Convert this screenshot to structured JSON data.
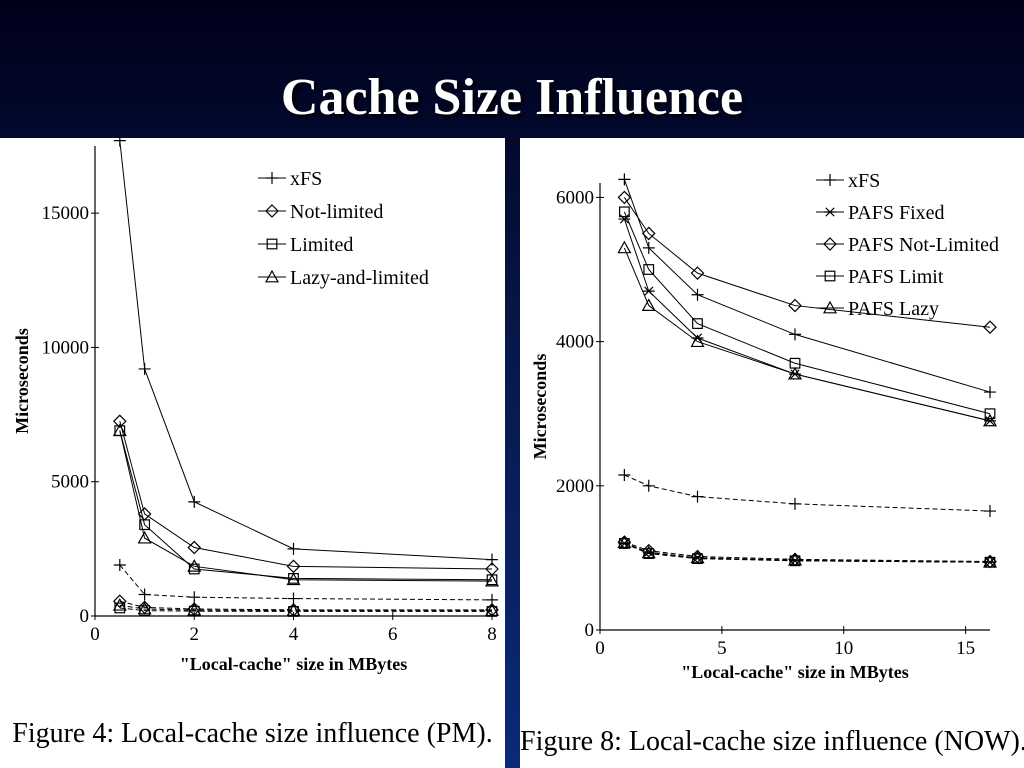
{
  "slide": {
    "title": "Cache Size Influence",
    "colors": {
      "background_top": "#00001a",
      "background_bottom": "#0b2a78",
      "title": "#ffffff",
      "panel": "#ffffff"
    }
  },
  "chart_data": [
    {
      "type": "line",
      "caption": "Figure 4: Local-cache size influence (PM).",
      "xlabel": "\"Local-cache\" size in MBytes",
      "ylabel": "Microseconds",
      "xlim": [
        0,
        8
      ],
      "ylim": [
        0,
        17500
      ],
      "xticks": [
        0,
        2,
        4,
        6,
        8
      ],
      "yticks": [
        0,
        5000,
        10000,
        15000
      ],
      "grid": false,
      "legend_position": "top-right",
      "series": [
        {
          "name": "xFS",
          "marker": "plus",
          "dash": false,
          "legend": true,
          "x": [
            0.5,
            1,
            2,
            4,
            8
          ],
          "y": [
            17700,
            9200,
            4250,
            2500,
            2100
          ]
        },
        {
          "name": "Not-limited",
          "marker": "diamond",
          "dash": false,
          "legend": true,
          "x": [
            0.5,
            1,
            2,
            4,
            8
          ],
          "y": [
            7250,
            3800,
            2550,
            1850,
            1750
          ]
        },
        {
          "name": "Limited",
          "marker": "square",
          "dash": false,
          "legend": true,
          "x": [
            0.5,
            1,
            2,
            4,
            8
          ],
          "y": [
            6900,
            3400,
            1750,
            1400,
            1350
          ]
        },
        {
          "name": "Lazy-and-limited",
          "marker": "triangle",
          "dash": false,
          "legend": true,
          "x": [
            0.5,
            1,
            2,
            4,
            8
          ],
          "y": [
            6900,
            2900,
            1850,
            1350,
            1300
          ]
        },
        {
          "marker": "plus",
          "dash": true,
          "legend": false,
          "x": [
            0.5,
            1,
            2,
            4,
            8
          ],
          "y": [
            1900,
            800,
            700,
            650,
            600
          ]
        },
        {
          "marker": "diamond",
          "dash": true,
          "legend": false,
          "x": [
            0.5,
            1,
            2,
            4,
            8
          ],
          "y": [
            550,
            320,
            260,
            230,
            230
          ]
        },
        {
          "marker": "square",
          "dash": true,
          "legend": false,
          "x": [
            0.5,
            1,
            2,
            4,
            8
          ],
          "y": [
            300,
            200,
            180,
            170,
            170
          ]
        },
        {
          "marker": "triangle",
          "dash": true,
          "legend": false,
          "x": [
            0.5,
            1,
            2,
            4,
            8
          ],
          "y": [
            400,
            260,
            220,
            200,
            200
          ]
        }
      ]
    },
    {
      "type": "line",
      "caption": "Figure 8: Local-cache size influence (NOW).",
      "xlabel": "\"Local-cache\" size in MBytes",
      "ylabel": "Microseconds",
      "xlim": [
        0,
        16
      ],
      "ylim": [
        0,
        6200
      ],
      "xticks": [
        0,
        5,
        10,
        15
      ],
      "yticks": [
        0,
        2000,
        4000,
        6000
      ],
      "grid": false,
      "legend_position": "top-right",
      "series": [
        {
          "name": "xFS",
          "marker": "plus",
          "dash": false,
          "legend": true,
          "x": [
            1,
            2,
            4,
            8,
            16
          ],
          "y": [
            6250,
            5300,
            4650,
            4100,
            3300
          ]
        },
        {
          "name": "PAFS Fixed",
          "marker": "star",
          "dash": false,
          "legend": true,
          "x": [
            1,
            2,
            4,
            8,
            16
          ],
          "y": [
            5700,
            4700,
            4050,
            3550,
            2900
          ]
        },
        {
          "name": "PAFS Not-Limited",
          "marker": "diamond",
          "dash": false,
          "legend": true,
          "x": [
            1,
            2,
            4,
            8,
            16
          ],
          "y": [
            6000,
            5500,
            4950,
            4500,
            4200
          ]
        },
        {
          "name": "PAFS Limit",
          "marker": "square",
          "dash": false,
          "legend": true,
          "x": [
            1,
            2,
            4,
            8,
            16
          ],
          "y": [
            5800,
            5000,
            4250,
            3700,
            3000
          ]
        },
        {
          "name": "PAFS Lazy",
          "marker": "triangle",
          "dash": false,
          "legend": true,
          "x": [
            1,
            2,
            4,
            8,
            16
          ],
          "y": [
            5300,
            4500,
            4000,
            3550,
            2900
          ]
        },
        {
          "marker": "plus",
          "dash": true,
          "legend": false,
          "x": [
            1,
            2,
            4,
            8,
            16
          ],
          "y": [
            2150,
            2000,
            1850,
            1750,
            1650
          ]
        },
        {
          "marker": "star",
          "dash": true,
          "legend": false,
          "x": [
            1,
            2,
            4,
            8,
            16
          ],
          "y": [
            1200,
            1080,
            1000,
            960,
            940
          ]
        },
        {
          "marker": "diamond",
          "dash": true,
          "legend": false,
          "x": [
            1,
            2,
            4,
            8,
            16
          ],
          "y": [
            1220,
            1100,
            1020,
            980,
            950
          ]
        },
        {
          "marker": "square",
          "dash": true,
          "legend": false,
          "x": [
            1,
            2,
            4,
            8,
            16
          ],
          "y": [
            1200,
            1060,
            990,
            960,
            940
          ]
        },
        {
          "marker": "triangle",
          "dash": true,
          "legend": false,
          "x": [
            1,
            2,
            4,
            8,
            16
          ],
          "y": [
            1210,
            1070,
            1000,
            970,
            940
          ]
        }
      ]
    }
  ]
}
